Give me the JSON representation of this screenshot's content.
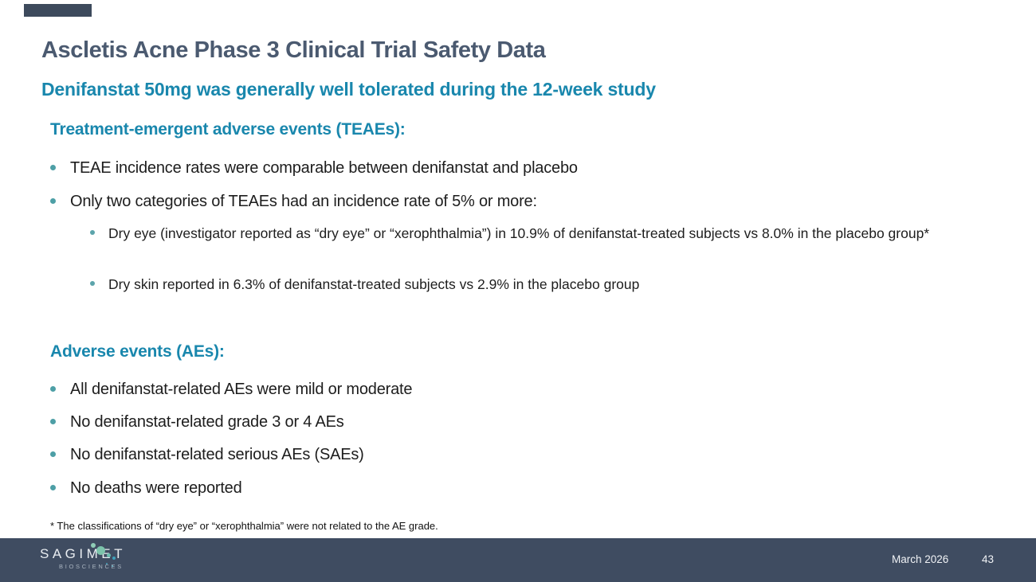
{
  "slide": {
    "title": "Ascletis Acne Phase 3 Clinical Trial Safety Data",
    "subtitle": "Denifanstat 50mg was generally well tolerated during the 12-week study",
    "sections": [
      {
        "heading": "Treatment-emergent adverse events (TEAEs):",
        "bullets": [
          "TEAE incidence rates were comparable between denifanstat and placebo",
          "Only two categories of TEAEs had an incidence rate of 5% or more:"
        ],
        "sub_bullets": [
          "Dry eye (investigator reported as “dry eye” or “xerophthalmia”) in 10.9% of denifanstat-treated subjects vs 8.0% in the placebo group*",
          "Dry skin reported in 6.3% of denifanstat-treated subjects vs 2.9% in the placebo group"
        ]
      },
      {
        "heading": "Adverse events (AEs):",
        "bullets": [
          "All denifanstat-related AEs were mild or moderate",
          "No denifanstat-related grade 3 or 4 AEs",
          "No denifanstat-related serious AEs (SAEs)",
          "No deaths were reported"
        ]
      }
    ],
    "footnote": "* The classifications of “dry eye” or “xerophthalmia” were not related to the AE grade.",
    "footer": {
      "logo_text": "SAGIMET",
      "logo_subtext": "BIOSCIENCES",
      "date": "March 2026",
      "page_number": "43"
    },
    "colors": {
      "title_text": "#4b5a70",
      "accent_teal": "#1987ad",
      "bullet_dot": "#4d9fa6",
      "accent_bar": "#3d4a5c",
      "footer_background": "#3f4c61",
      "body_text": "#1d1d1d",
      "logo_dot_seafoam": "#7cc3ab",
      "logo_dot_blue": "#3ea0bb"
    }
  }
}
